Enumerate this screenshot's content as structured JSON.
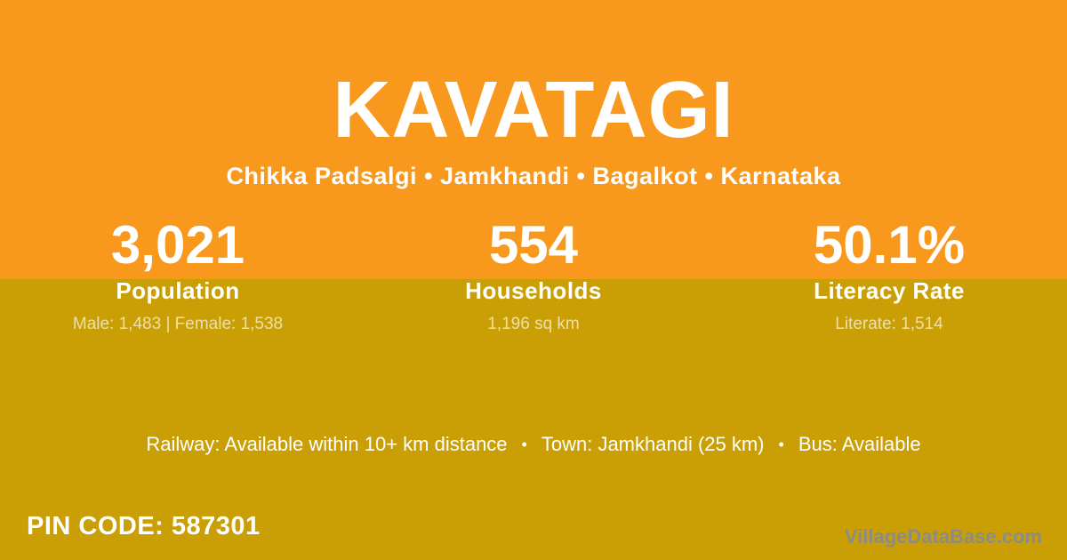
{
  "theme": {
    "header_orange": "#F8981D",
    "body_olive": "#CA9F05",
    "text_white": "#FFFFFF",
    "detail_cream": "#EDDFA9",
    "watermark_gray": "#8C8C85"
  },
  "header": {
    "title": "KAVATAGI",
    "breadcrumb": "Chikka Padsalgi • Jamkhandi • Bagalkot • Karnataka"
  },
  "stats": [
    {
      "value": "3,021",
      "label": "Population",
      "detail": "Male: 1,483 | Female: 1,538"
    },
    {
      "value": "554",
      "label": "Households",
      "detail": "1,196 sq km"
    },
    {
      "value": "50.1%",
      "label": "Literacy Rate",
      "detail": "Literate: 1,514"
    }
  ],
  "transport": {
    "railway": "Railway: Available within 10+ km distance",
    "separator": "•",
    "town": "Town: Jamkhandi (25 km)",
    "bus": "Bus: Available"
  },
  "footer": {
    "pin_code": "PIN CODE: 587301",
    "watermark": "VillageDataBase.com"
  }
}
